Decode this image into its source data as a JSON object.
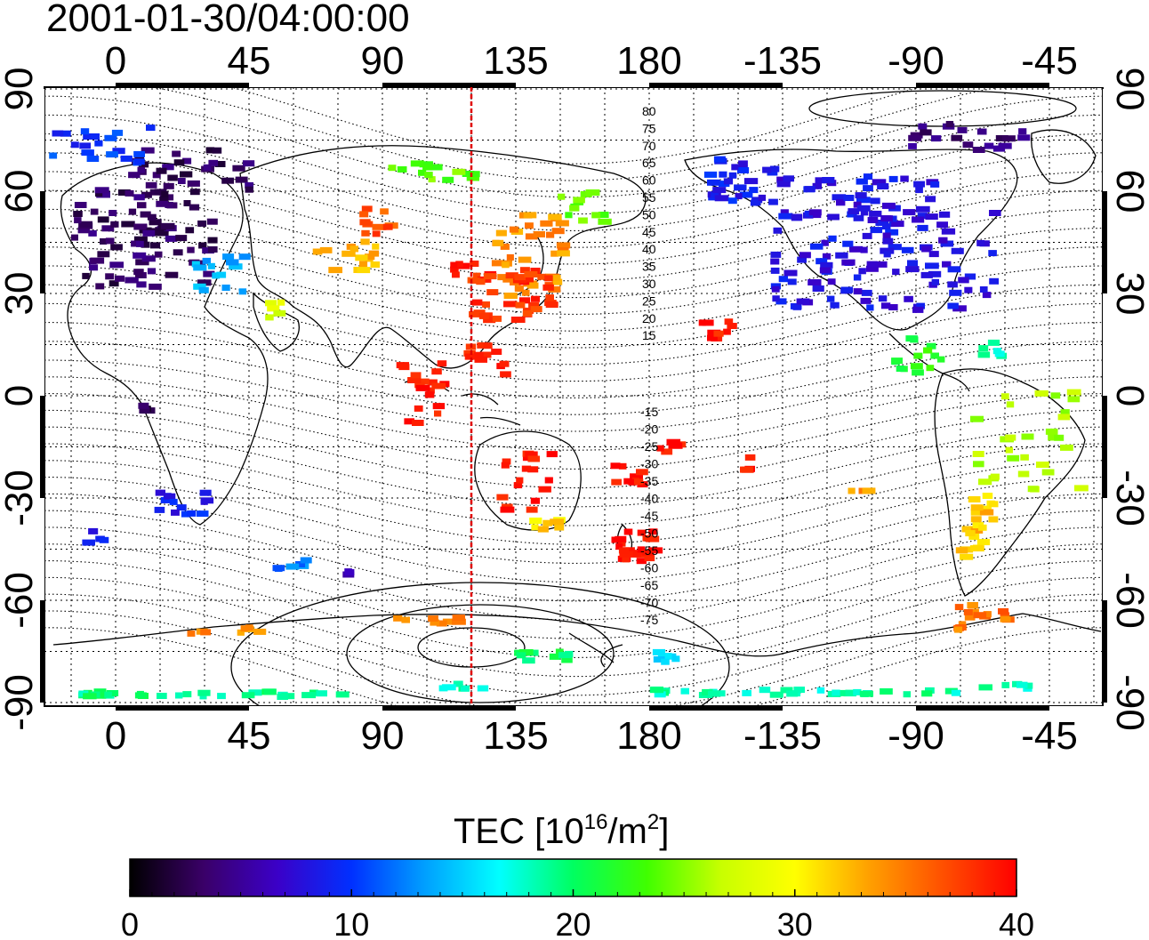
{
  "title": "2001-01-30/04:00:00",
  "map": {
    "lon_ticks": [
      "0",
      "45",
      "90",
      "135",
      "180",
      "-135",
      "-90",
      "-45"
    ],
    "lat_ticks": [
      "90",
      "60",
      "30",
      "0",
      "-30",
      "-60",
      "-90"
    ],
    "marker_longitude": 120,
    "contour_labels_north": [
      "80",
      "75",
      "70",
      "65",
      "60",
      "55",
      "50",
      "45",
      "40",
      "35",
      "30",
      "25",
      "20",
      "15"
    ],
    "contour_labels_south": [
      "-15",
      "-20",
      "-25",
      "-30",
      "-35",
      "-40",
      "-45",
      "-50",
      "-55",
      "-60",
      "-65",
      "-70",
      "-75"
    ],
    "colors": {
      "marker_line": "#e00000",
      "grid": "#000000"
    }
  },
  "colorbar": {
    "title_prefix": "TEC  [10",
    "title_exp1": "16",
    "title_mid": "/m",
    "title_exp2": "2",
    "title_suffix": "]",
    "ticks": [
      "0",
      "10",
      "20",
      "30",
      "40"
    ],
    "colormap": [
      "#000000",
      "#3a0068",
      "#3b00c8",
      "#0030ff",
      "#00a0ff",
      "#00ffff",
      "#00ff60",
      "#40ff00",
      "#c8ff00",
      "#ffff00",
      "#ffa000",
      "#ff5000",
      "#ff0000"
    ]
  }
}
